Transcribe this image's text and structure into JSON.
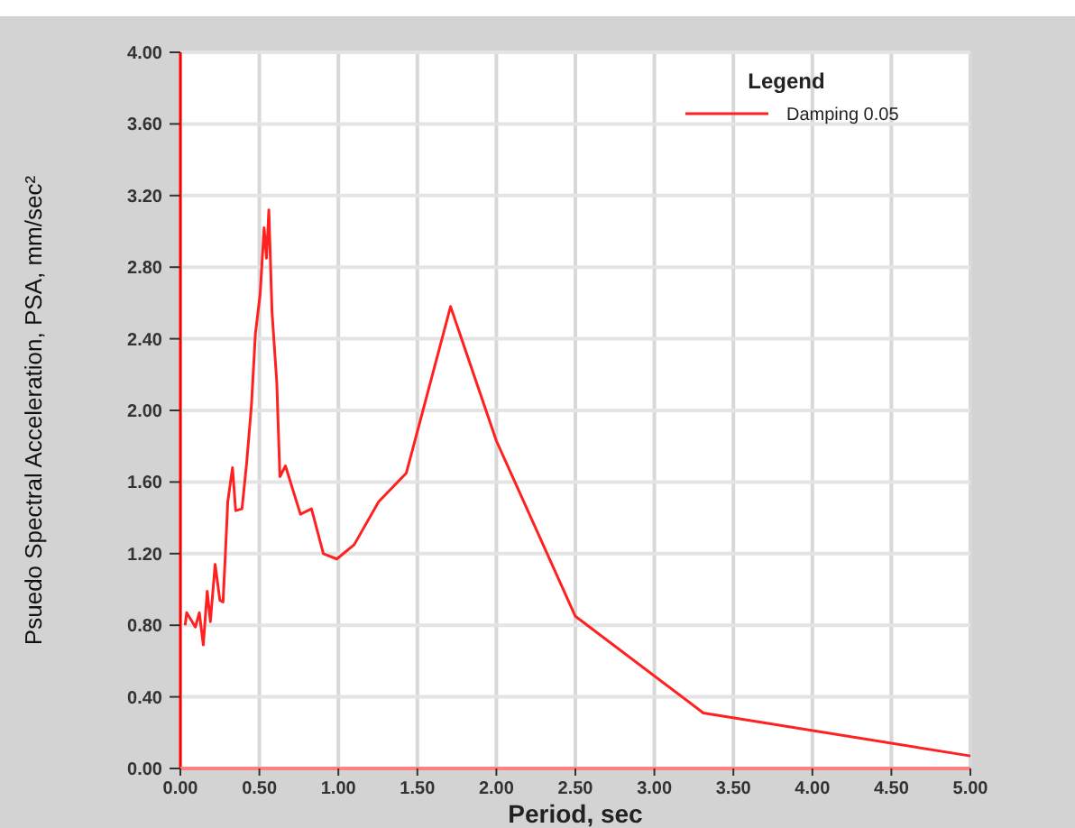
{
  "chart_data": {
    "type": "line",
    "xlabel": "Period, sec",
    "ylabel": "Psuedo Spectral Acceleration, PSA, mm/sec²",
    "legend_title": "Legend",
    "legend": "top right",
    "grid": true,
    "marker": "none",
    "line_style": "solid",
    "xlim": [
      0,
      5
    ],
    "ylim": [
      0,
      4
    ],
    "xticks": [
      {
        "value": 0,
        "label": "0.00"
      },
      {
        "value": 0.5,
        "label": "0.50"
      },
      {
        "value": 1,
        "label": "1.00"
      },
      {
        "value": 1.5,
        "label": "1.50"
      },
      {
        "value": 2,
        "label": "2.00"
      },
      {
        "value": 2.5,
        "label": "2.50"
      },
      {
        "value": 3,
        "label": "3.00"
      },
      {
        "value": 3.5,
        "label": "3.50"
      },
      {
        "value": 4,
        "label": "4.00"
      },
      {
        "value": 4.5,
        "label": "4.50"
      },
      {
        "value": 5,
        "label": "5.00"
      }
    ],
    "yticks": [
      {
        "value": 0,
        "label": "0.00"
      },
      {
        "value": 0.4,
        "label": "0.40"
      },
      {
        "value": 0.8,
        "label": "0.80"
      },
      {
        "value": 1.2,
        "label": "1.20"
      },
      {
        "value": 1.6,
        "label": "1.60"
      },
      {
        "value": 2,
        "label": "2.00"
      },
      {
        "value": 2.4,
        "label": "2.40"
      },
      {
        "value": 2.8,
        "label": "2.80"
      },
      {
        "value": 3.2,
        "label": "3.20"
      },
      {
        "value": 3.6,
        "label": "3.60"
      },
      {
        "value": 4,
        "label": "4.00"
      }
    ],
    "x": [
      0.03,
      0.04,
      0.095,
      0.12,
      0.145,
      0.17,
      0.19,
      0.22,
      0.25,
      0.27,
      0.285,
      0.3,
      0.33,
      0.35,
      0.39,
      0.42,
      0.45,
      0.475,
      0.505,
      0.53,
      0.545,
      0.56,
      0.58,
      0.61,
      0.63,
      0.665,
      0.76,
      0.83,
      0.905,
      0.99,
      1.1,
      1.255,
      1.43,
      1.71,
      2.0,
      2.5,
      3.31,
      5.0
    ],
    "series": [
      {
        "name": "Damping 0.05",
        "color": "#ff2020",
        "values": [
          0.8,
          0.87,
          0.79,
          0.87,
          0.69,
          0.99,
          0.82,
          1.14,
          0.94,
          0.93,
          1.2,
          1.49,
          1.68,
          1.44,
          1.45,
          1.71,
          2.03,
          2.43,
          2.65,
          3.02,
          2.85,
          3.12,
          2.55,
          2.16,
          1.63,
          1.69,
          1.42,
          1.45,
          1.2,
          1.17,
          1.25,
          1.49,
          1.65,
          2.58,
          1.83,
          0.85,
          0.31,
          0.07
        ]
      }
    ]
  }
}
